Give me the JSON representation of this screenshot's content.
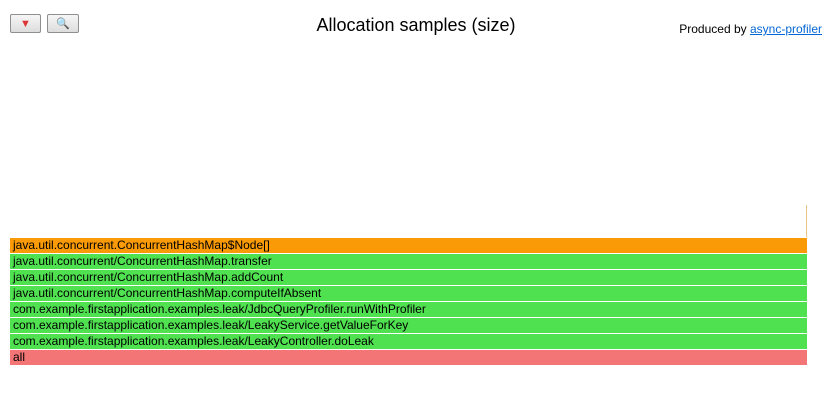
{
  "toolbar": {
    "reverse_icon": "▼",
    "search_icon": "🔍"
  },
  "title": "Allocation samples (size)",
  "produced_by": {
    "prefix": "Produced by ",
    "link_text": "async-profiler"
  },
  "colors": {
    "alloc_frame": "#f99a06",
    "java_frame": "#50e150",
    "root_frame": "#f37575",
    "marker_line": "#e8c48a"
  },
  "frames": [
    {
      "label": "java.util.concurrent.ConcurrentHashMap$Node[]",
      "kind": "alloc"
    },
    {
      "label": "java.util.concurrent/ConcurrentHashMap.transfer",
      "kind": "java"
    },
    {
      "label": "java.util.concurrent/ConcurrentHashMap.addCount",
      "kind": "java"
    },
    {
      "label": "java.util.concurrent/ConcurrentHashMap.computeIfAbsent",
      "kind": "java"
    },
    {
      "label": "com.example.firstapplication.examples.leak/JdbcQueryProfiler.runWithProfiler",
      "kind": "java"
    },
    {
      "label": "com.example.firstapplication.examples.leak/LeakyService.getValueForKey",
      "kind": "java"
    },
    {
      "label": "com.example.firstapplication.examples.leak/LeakyController.doLeak",
      "kind": "java"
    },
    {
      "label": "all",
      "kind": "root"
    }
  ]
}
